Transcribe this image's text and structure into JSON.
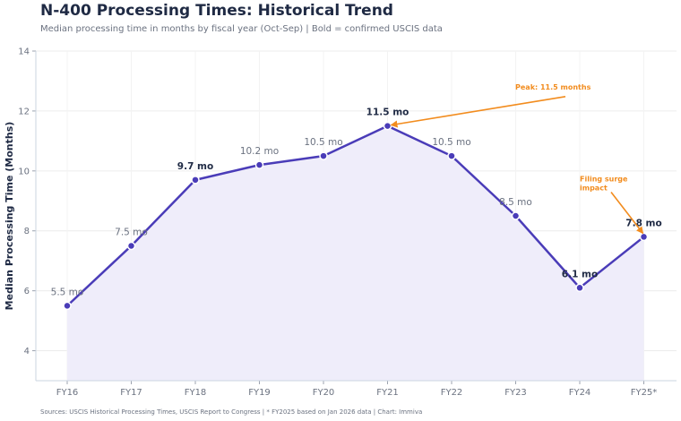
{
  "header": {
    "title": "N-400 Processing Times: Historical Trend",
    "subtitle": "Median processing time in months by fiscal year (Oct-Sep) | Bold = confirmed USCIS data"
  },
  "footer": {
    "text": "Sources: USCIS Historical Processing Times, USCIS Report to Congress  |  * FY2025 based on Jan 2026 data  |  Chart: Immiva"
  },
  "colors": {
    "line": "#4a3cb8",
    "fill": "#efedfa",
    "annotation": "#f28c1e",
    "grid": "#ececec"
  },
  "chart_data": {
    "type": "line",
    "title": "N-400 Processing Times: Historical Trend",
    "ylabel": "Median Processing Time (Months)",
    "xlabel": "",
    "ylim": [
      3,
      14
    ],
    "yticks": [
      4,
      6,
      8,
      10,
      12,
      14
    ],
    "grid": true,
    "categories": [
      "FY16",
      "FY17",
      "FY18",
      "FY19",
      "FY20",
      "FY21",
      "FY22",
      "FY23",
      "FY24",
      "FY25*"
    ],
    "values": [
      5.5,
      7.5,
      9.7,
      10.2,
      10.5,
      11.5,
      10.5,
      8.5,
      6.1,
      7.8
    ],
    "labels": [
      "5.5 mo",
      "7.5 mo",
      "9.7 mo",
      "10.2 mo",
      "10.5 mo",
      "11.5 mo",
      "10.5 mo",
      "8.5 mo",
      "6.1 mo",
      "7.8 mo"
    ],
    "confirmed": [
      false,
      false,
      true,
      false,
      false,
      true,
      false,
      false,
      true,
      true
    ],
    "annotations": [
      {
        "lines": [
          "Peak: 11.5 months"
        ],
        "target_index": 5,
        "anchor_x": 8.0,
        "anchor_y": 12.6
      },
      {
        "lines": [
          "Filing surge",
          "impact"
        ],
        "target_index": 9,
        "anchor_x": 8.0,
        "anchor_y": 9.5
      }
    ]
  }
}
